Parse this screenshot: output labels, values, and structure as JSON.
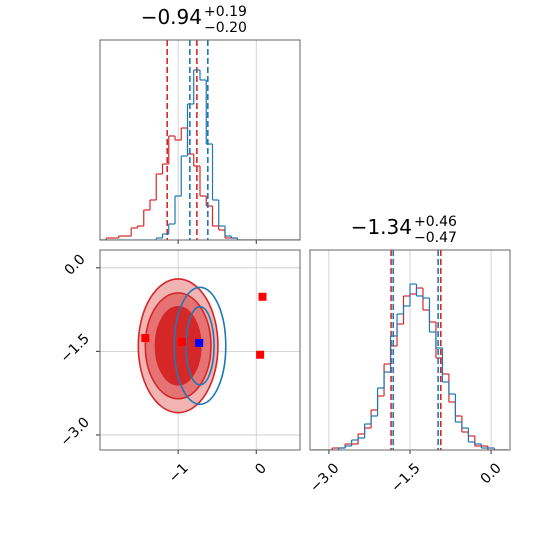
{
  "chart_data": [
    {
      "type": "histogram",
      "title": "−0.94",
      "title_upper": "+0.19",
      "title_lower": "−0.20",
      "bins": [
        -2.0,
        -1.92,
        -1.84,
        -1.76,
        -1.68,
        -1.6,
        -1.52,
        -1.44,
        -1.36,
        -1.28,
        -1.2,
        -1.12,
        -1.04,
        -0.96,
        -0.88,
        -0.8,
        -0.72,
        -0.64,
        -0.56,
        -0.48,
        -0.4,
        -0.32,
        -0.24,
        -0.16,
        -0.08,
        0,
        0.08,
        0.16,
        0.24,
        0.32,
        0.4,
        0.48,
        0.56
      ],
      "series": [
        {
          "color": "#d62728",
          "values": [
            0,
            1,
            1,
            2,
            2,
            6,
            7,
            15,
            20,
            33,
            38,
            52,
            50,
            56,
            43,
            37,
            22,
            17,
            7,
            5,
            1,
            1,
            0,
            0,
            0,
            0,
            0,
            0,
            0,
            0,
            0,
            0
          ],
          "quantiles": [
            -1.14,
            -0.76
          ]
        },
        {
          "color": "#1f77b4",
          "values": [
            0,
            0,
            0,
            0,
            0,
            0,
            0,
            0,
            0,
            1,
            3,
            8,
            22,
            42,
            68,
            85,
            80,
            48,
            20,
            7,
            2,
            1,
            0,
            0,
            0,
            0,
            0,
            0,
            0,
            0,
            0,
            0
          ],
          "quantiles": [
            -0.85,
            -0.62
          ]
        }
      ],
      "xlim": [
        -2.0,
        0.56
      ],
      "ylim": [
        0,
        100
      ],
      "xticks": [
        -1,
        0
      ],
      "grid": true
    },
    {
      "type": "contour",
      "xlim": [
        -2.0,
        0.56
      ],
      "ylim": [
        -3.27,
        0.32
      ],
      "xticks": [
        {
          "value": -1,
          "label": "−1"
        },
        0
      ],
      "yticks": [
        {
          "value": 0,
          "label": "0.0"
        },
        {
          "value": -1.5,
          "label": "−1.5"
        },
        {
          "value": -3.0,
          "label": "−3.0"
        }
      ],
      "grid": true,
      "contours": [
        {
          "color": "#d62728",
          "fills": [
            "#f2b3b3",
            "#e57373",
            "#d62728"
          ],
          "levels": [
            {
              "cx": -1.0,
              "cy": -1.4,
              "rx": 0.51,
              "ry": 1.2
            },
            {
              "cx": -1.0,
              "cy": -1.4,
              "rx": 0.42,
              "ry": 0.95
            },
            {
              "cx": -1.0,
              "cy": -1.4,
              "rx": 0.29,
              "ry": 0.7
            }
          ]
        },
        {
          "color": "#1f77b4",
          "levels": [
            {
              "cx": -0.72,
              "cy": -1.4,
              "rx": 0.33,
              "ry": 1.05
            },
            {
              "cx": -0.72,
              "cy": -1.4,
              "rx": 0.18,
              "ry": 0.7
            }
          ]
        }
      ],
      "points": [
        {
          "color": "#ff0000",
          "x": [
            -1.42,
            -0.95,
            0.08,
            0.05
          ],
          "y": [
            -1.26,
            -1.33,
            -0.52,
            -1.56
          ]
        },
        {
          "color": "#0000ff",
          "x": [
            -0.73
          ],
          "y": [
            -1.35
          ]
        }
      ]
    },
    {
      "type": "histogram",
      "title": "−1.34",
      "title_upper": "+0.46",
      "title_lower": "−0.47",
      "bins": [
        -3.3,
        -3.18,
        -3.06,
        -2.94,
        -2.82,
        -2.7,
        -2.58,
        -2.46,
        -2.34,
        -2.22,
        -2.1,
        -1.98,
        -1.86,
        -1.74,
        -1.62,
        -1.5,
        -1.38,
        -1.26,
        -1.14,
        -1.02,
        -0.9,
        -0.78,
        -0.66,
        -0.54,
        -0.42,
        -0.3,
        -0.18,
        -0.06,
        0.06,
        0.18,
        0.3
      ],
      "series": [
        {
          "color": "#d62728",
          "values": [
            0,
            0,
            0,
            1,
            1,
            3,
            3,
            8,
            11,
            20,
            27,
            43,
            52,
            63,
            77,
            78,
            81,
            70,
            64,
            46,
            38,
            24,
            17,
            9,
            7,
            2,
            2,
            0,
            0,
            0
          ],
          "quantiles": [
            -1.85,
            -0.93
          ]
        },
        {
          "color": "#1f77b4",
          "values": [
            0,
            0,
            0,
            0,
            1,
            2,
            5,
            6,
            13,
            17,
            31,
            39,
            57,
            68,
            72,
            83,
            77,
            76,
            59,
            51,
            34,
            28,
            14,
            11,
            4,
            3,
            1,
            1,
            0,
            0
          ],
          "quantiles": [
            -1.81,
            -0.98
          ]
        }
      ],
      "xlim": [
        -3.35,
        0.35
      ],
      "ylim": [
        0,
        100
      ],
      "xticks": [
        {
          "value": -3.0,
          "label": "−3.0"
        },
        {
          "value": -1.5,
          "label": "−1.5"
        },
        {
          "value": 0,
          "label": "0.0"
        }
      ],
      "grid": true
    }
  ]
}
